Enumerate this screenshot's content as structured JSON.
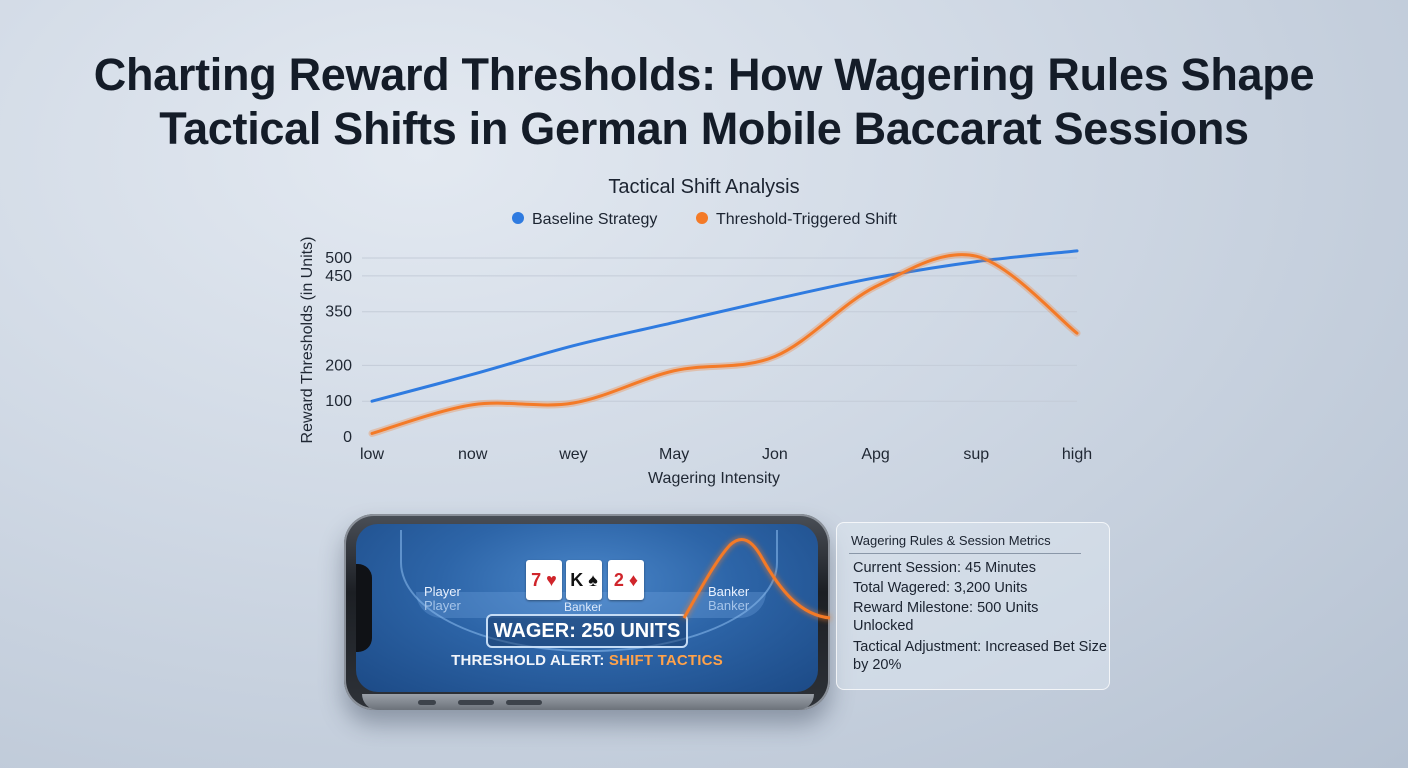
{
  "page": {
    "title_line1": "Charting Reward Thresholds: How Wagering Rules Shape",
    "title_line2": "Tactical Shifts in German Mobile Baccarat Sessions"
  },
  "chart_data": {
    "type": "line",
    "title": "Tactical Shift Analysis",
    "xlabel": "Wagering Intensity",
    "ylabel": "Reward Thresholds (in Units)",
    "categories": [
      "low",
      "now",
      "wey",
      "May",
      "Jon",
      "Apg",
      "sup",
      "high"
    ],
    "yticks": [
      0,
      100,
      200,
      350,
      450,
      500
    ],
    "ylim": [
      0,
      500
    ],
    "grid": true,
    "legend_position": "top",
    "series": [
      {
        "name": "Baseline Strategy",
        "color": "#2f7be0",
        "values": [
          100,
          175,
          255,
          320,
          385,
          445,
          490,
          520
        ]
      },
      {
        "name": "Threshold-Triggered Shift",
        "color": "#f47a27",
        "values": [
          10,
          90,
          95,
          185,
          225,
          420,
          505,
          290
        ]
      }
    ]
  },
  "phone": {
    "player_label": "Player",
    "banker_label": "Banker",
    "wager": "WAGER: 250 UNITS",
    "alert_prefix": "THRESHOLD ALERT: ",
    "alert_highlight": "SHIFT TACTICS",
    "cards": [
      "7 ♥",
      "K ♠",
      "2 ♦"
    ]
  },
  "metrics": {
    "title": "Wagering Rules & Session Metrics",
    "items": [
      "Current Session: 45 Minutes",
      "Total Wagered: 3,200 Units",
      "Reward Milestone: 500 Units Unlocked",
      "Tactical Adjustment: Increased Bet Size by 20%"
    ]
  },
  "colors": {
    "accent_orange": "#f47a27",
    "accent_blue": "#2f7be0"
  }
}
